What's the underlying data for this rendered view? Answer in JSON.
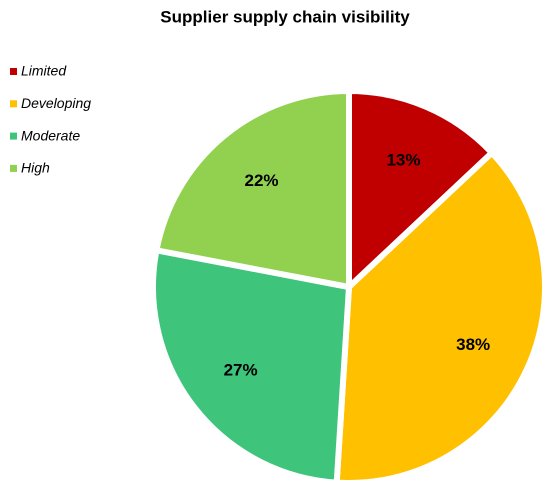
{
  "chart_data": {
    "type": "pie",
    "title": "Supplier supply chain visibility",
    "categories": [
      "Limited",
      "Developing",
      "Moderate",
      "High"
    ],
    "values": [
      13,
      38,
      27,
      22
    ],
    "value_labels": [
      "13%",
      "38%",
      "27%",
      "22%"
    ],
    "colors": [
      "#c00000",
      "#ffc000",
      "#3fc47c",
      "#92d050"
    ],
    "legend": "left"
  }
}
